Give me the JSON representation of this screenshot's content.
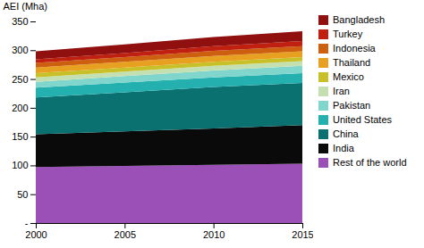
{
  "chart_data": {
    "type": "area",
    "stacked": true,
    "x": [
      2000,
      2005,
      2010,
      2015
    ],
    "series": [
      {
        "name": "Rest of the world",
        "color": "#9B50B8",
        "values": [
          97,
          99,
          101,
          103
        ]
      },
      {
        "name": "India",
        "color": "#0A0A0A",
        "values": [
          57,
          60,
          63,
          67
        ]
      },
      {
        "name": "China",
        "color": "#0A7070",
        "values": [
          64,
          68,
          72,
          73
        ]
      },
      {
        "name": "United States",
        "color": "#25B0B0",
        "values": [
          17,
          17,
          17,
          17
        ]
      },
      {
        "name": "Pakistan",
        "color": "#80D5CC",
        "values": [
          10,
          11,
          12,
          13
        ]
      },
      {
        "name": "Iran",
        "color": "#C5E0B0",
        "values": [
          8,
          8,
          8,
          8
        ]
      },
      {
        "name": "Mexico",
        "color": "#C8C028",
        "values": [
          7,
          7,
          7,
          7
        ]
      },
      {
        "name": "Thailand",
        "color": "#E8A020",
        "values": [
          10,
          10,
          10,
          10
        ]
      },
      {
        "name": "Indonesia",
        "color": "#CC6010",
        "values": [
          8,
          8,
          9,
          9
        ]
      },
      {
        "name": "Turkey",
        "color": "#C02010",
        "values": [
          6,
          7,
          8,
          9
        ]
      },
      {
        "name": "Bangladesh",
        "color": "#901010",
        "values": [
          14,
          15,
          16,
          17
        ]
      }
    ],
    "ylabel": "AEI (Mha)",
    "xlim": [
      2000,
      2015
    ],
    "xticks": [
      2000,
      2005,
      2010,
      2015
    ],
    "ylim": [
      0,
      350
    ],
    "yticks": [
      {
        "value": 0,
        "label": "-"
      },
      50,
      100,
      150,
      200,
      250,
      300,
      350
    ],
    "legend": "right",
    "grid": false
  }
}
